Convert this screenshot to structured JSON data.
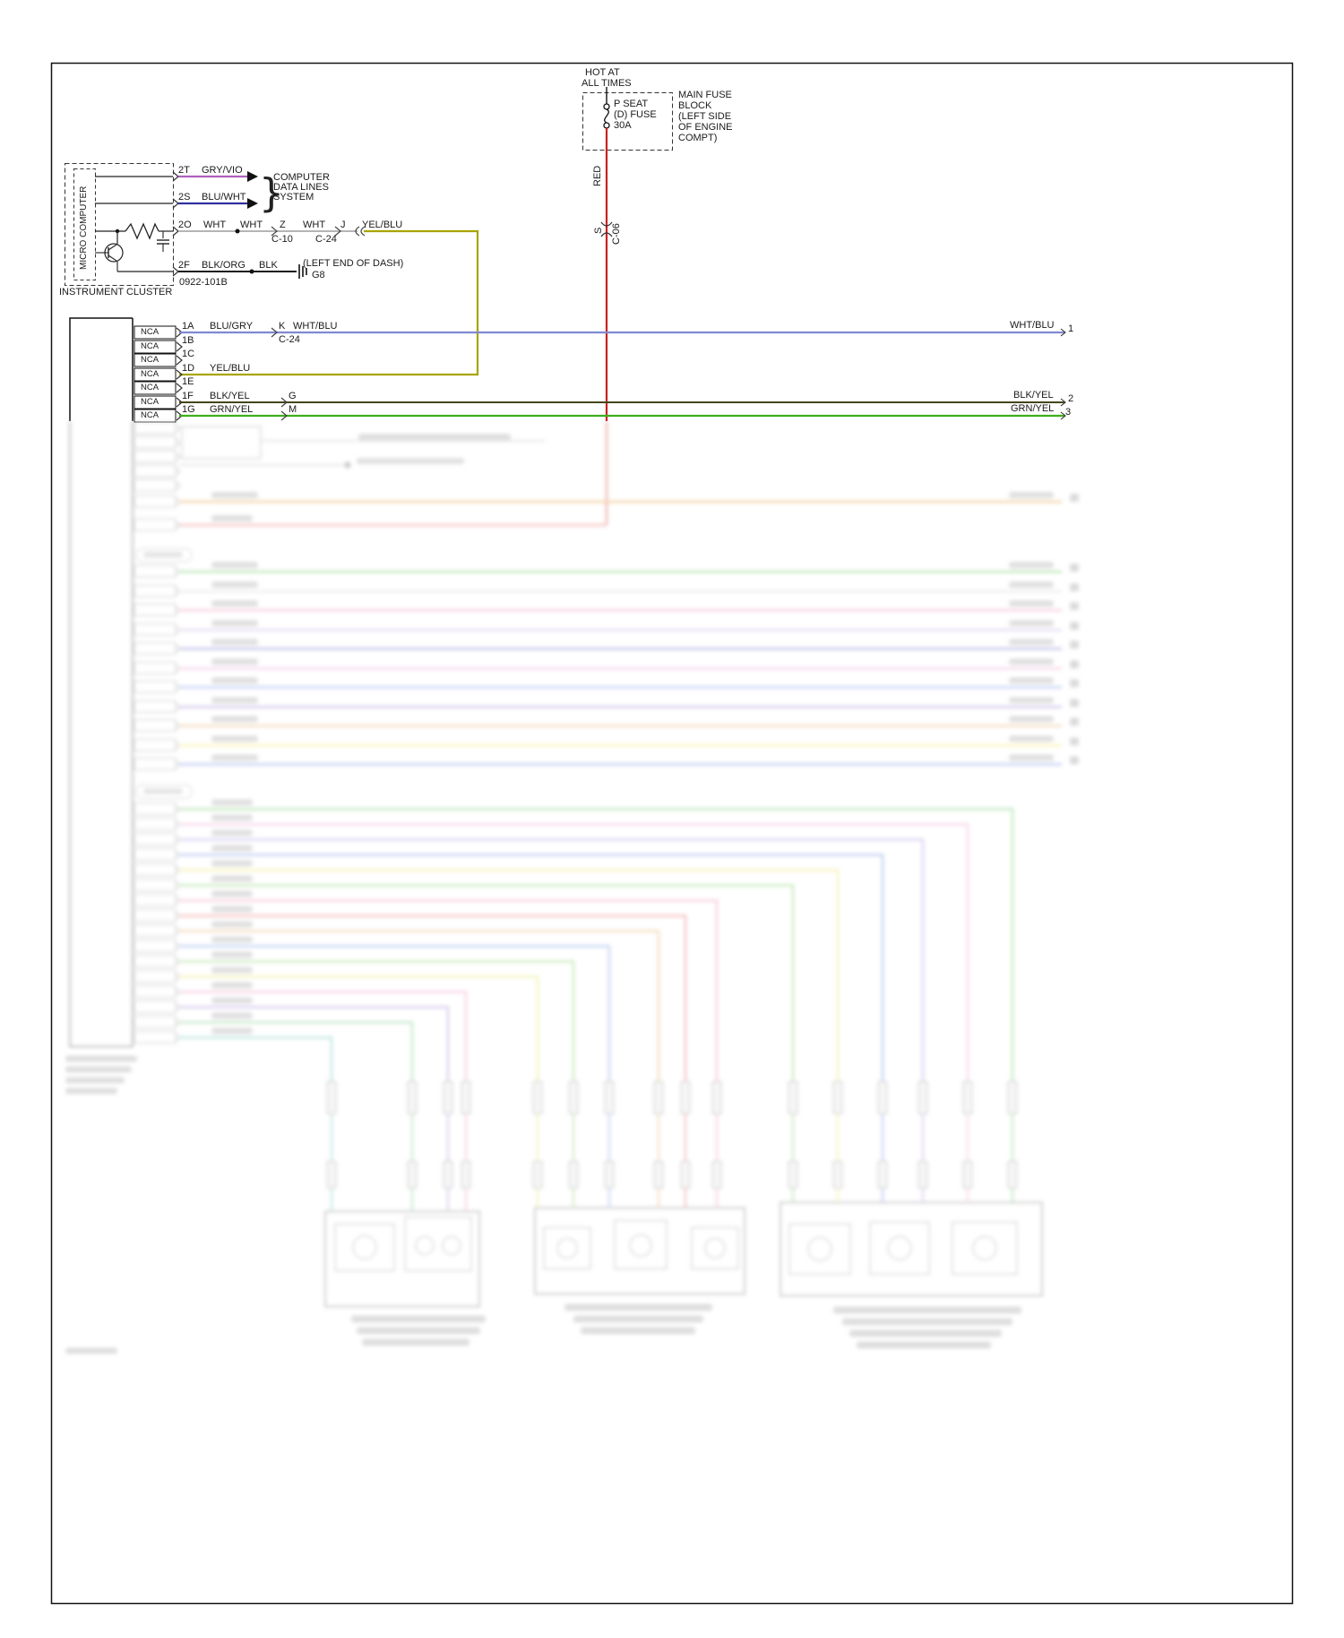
{
  "diagram": {
    "power": {
      "hot1": "HOT AT",
      "hot2": "ALL TIMES",
      "fuse1": "P SEAT",
      "fuse2": "(D) FUSE",
      "fuse3": "30A",
      "block1": "MAIN FUSE",
      "block2": "BLOCK",
      "block3": "(LEFT SIDE",
      "block4": "OF ENGINE",
      "block5": "COMPT)",
      "wire": "RED",
      "splice": "S",
      "connector": "C-06"
    },
    "cluster": {
      "unit": "MICRO COMPUTER",
      "caption": "INSTRUMENT CLUSTER",
      "part": "0922-101B",
      "pin2t": "2T",
      "wire2t": "GRY/VIO",
      "pin2s": "2S",
      "wire2s": "BLU/WHT",
      "pin2o": "2O",
      "wire2o": "WHT",
      "pin2f": "2F",
      "wire2f": "BLK/ORG",
      "brace": "}",
      "dest1": "COMPUTER",
      "dest2": "DATA LINES",
      "dest3": "SYSTEM",
      "seg1": "WHT",
      "z": "Z",
      "zref": "C-10",
      "seg2": "WHT",
      "j": "J",
      "jref": "C-24",
      "seg3": "YEL/BLU",
      "blk": "BLK",
      "ground_note": "(LEFT END OF DASH)",
      "ground": "G8"
    },
    "rows": [
      {
        "nca": "NCA",
        "pin": "1A",
        "wire": "BLU/GRY",
        "sp": "K",
        "spwire": "WHT/BLU",
        "spref": "C-24",
        "right": "WHT/BLU",
        "num": "1"
      },
      {
        "nca": "NCA",
        "pin": "1B"
      },
      {
        "nca": "NCA",
        "pin": "1C"
      },
      {
        "nca": "NCA",
        "pin": "1D",
        "wire": "YEL/BLU"
      },
      {
        "nca": "NCA",
        "pin": "1E"
      },
      {
        "nca": "NCA",
        "pin": "1F",
        "wire": "BLK/YEL",
        "sp": "G",
        "right": "BLK/YEL",
        "num": "2"
      },
      {
        "nca": "NCA",
        "pin": "1G",
        "wire": "GRN/YEL",
        "sp": "M",
        "right": "GRN/YEL",
        "num": "3"
      }
    ],
    "colors": {
      "red": "#cc2020",
      "gry_vio": "#b060c0",
      "blu_wht": "#3030a0",
      "wht": "#b5b5b5",
      "yel_blu": "#a8a400",
      "blk": "#1a1a1a",
      "wht_blu": "#8089d0",
      "blk_yel": "#45451a",
      "grn_yel": "#3fae1f"
    }
  }
}
